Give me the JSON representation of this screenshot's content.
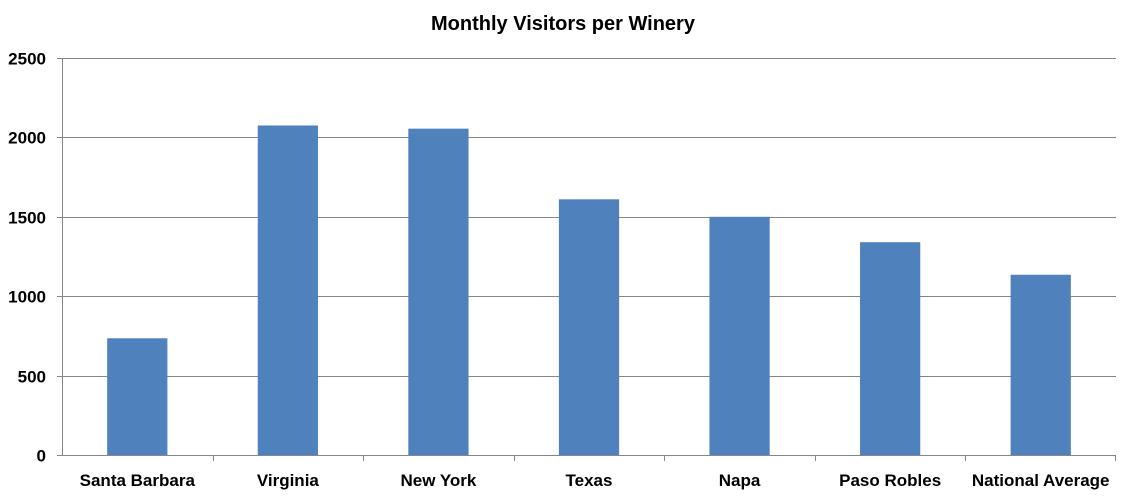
{
  "chart_data": {
    "type": "bar",
    "title": "Monthly Visitors per Winery",
    "xlabel": "",
    "ylabel": "",
    "categories": [
      "Santa Barbara",
      "Virginia",
      "New York",
      "Texas",
      "Napa",
      "Paso Robles",
      "National Average"
    ],
    "values": [
      735,
      2075,
      2055,
      1610,
      1500,
      1340,
      1135
    ],
    "ylim": [
      0,
      2500
    ],
    "yticks": [
      0,
      500,
      1000,
      1500,
      2000,
      2500
    ],
    "ytick_labels": [
      "0",
      "500",
      "1000",
      "1500",
      "2000",
      "2500"
    ],
    "grid": true,
    "legend": false,
    "bar_color": "#4F81BD",
    "grid_color": "#868686",
    "axis_color": "#868686"
  }
}
